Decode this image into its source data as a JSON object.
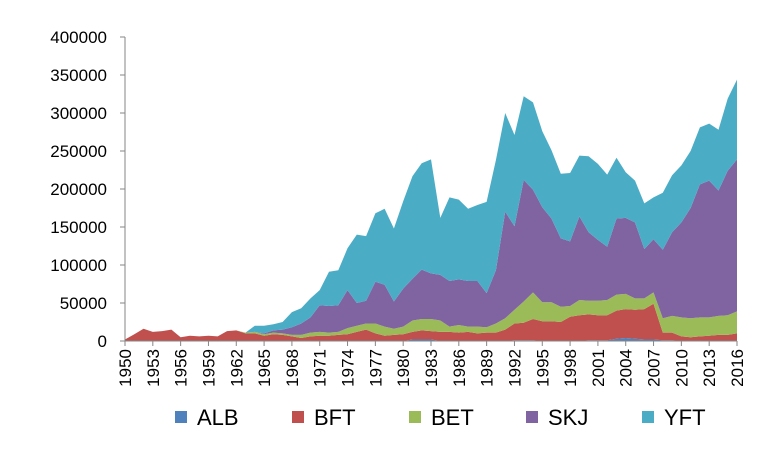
{
  "chart_data": {
    "type": "area",
    "stacked": true,
    "title": "",
    "xlabel": "",
    "ylabel": "",
    "ylim": [
      0,
      400000
    ],
    "yticks": [
      0,
      50000,
      100000,
      150000,
      200000,
      250000,
      300000,
      350000,
      400000
    ],
    "x": [
      1950,
      1951,
      1952,
      1953,
      1954,
      1955,
      1956,
      1957,
      1958,
      1959,
      1960,
      1961,
      1962,
      1963,
      1964,
      1965,
      1966,
      1967,
      1968,
      1969,
      1970,
      1971,
      1972,
      1973,
      1974,
      1975,
      1976,
      1977,
      1978,
      1979,
      1980,
      1981,
      1982,
      1983,
      1984,
      1985,
      1986,
      1987,
      1988,
      1989,
      1990,
      1991,
      1992,
      1993,
      1994,
      1995,
      1996,
      1997,
      1998,
      1999,
      2000,
      2001,
      2002,
      2003,
      2004,
      2005,
      2006,
      2007,
      2008,
      2009,
      2010,
      2011,
      2012,
      2013,
      2014,
      2015,
      2016
    ],
    "xticks": [
      1950,
      1953,
      1956,
      1959,
      1962,
      1965,
      1968,
      1971,
      1974,
      1977,
      1980,
      1983,
      1986,
      1989,
      1992,
      1995,
      1998,
      2001,
      2004,
      2007,
      2010,
      2013,
      2016
    ],
    "grid": false,
    "legend_position": "bottom",
    "colors": {
      "ALB": "#4F81BD",
      "BFT": "#C0504D",
      "BET": "#9BBB59",
      "SKJ": "#8064A2",
      "YFT": "#4BACC6"
    },
    "series": [
      {
        "name": "ALB",
        "values": [
          0,
          0,
          0,
          0,
          0,
          0,
          0,
          0,
          0,
          0,
          0,
          0,
          0,
          0,
          0,
          0,
          0,
          0,
          0,
          0,
          0,
          0,
          0,
          0,
          0,
          0,
          0,
          0,
          0,
          0,
          0,
          2000,
          2000,
          2000,
          0,
          0,
          0,
          0,
          0,
          0,
          0,
          0,
          1000,
          1000,
          1000,
          0,
          0,
          0,
          0,
          0,
          1000,
          1000,
          1000,
          3000,
          4000,
          3000,
          2000,
          2000,
          1000,
          1000,
          0,
          0,
          0,
          0,
          0,
          0,
          0
        ]
      },
      {
        "name": "BFT",
        "values": [
          2000,
          9000,
          16000,
          12000,
          13000,
          15000,
          5000,
          7000,
          6000,
          7000,
          6000,
          13000,
          14000,
          10000,
          10000,
          7000,
          9000,
          8000,
          6000,
          4000,
          6000,
          7000,
          7000,
          8000,
          9000,
          12000,
          15000,
          10000,
          7000,
          8000,
          9000,
          10000,
          12000,
          11000,
          12000,
          12000,
          11000,
          12000,
          10000,
          11000,
          11000,
          15000,
          22000,
          23000,
          28000,
          26000,
          26000,
          25000,
          32000,
          34000,
          34000,
          33000,
          33000,
          37000,
          38000,
          38000,
          40000,
          47000,
          10000,
          10000,
          6000,
          5000,
          6000,
          7000,
          8000,
          8000,
          10000
        ]
      },
      {
        "name": "BET",
        "values": [
          0,
          0,
          0,
          0,
          0,
          0,
          0,
          0,
          0,
          0,
          0,
          0,
          0,
          1000,
          2000,
          2000,
          2000,
          2000,
          2000,
          4000,
          5000,
          5000,
          4000,
          4000,
          8000,
          8000,
          8000,
          13000,
          12000,
          8000,
          10000,
          15000,
          15000,
          16000,
          15000,
          7000,
          10000,
          7000,
          9000,
          7000,
          12000,
          15000,
          18000,
          28000,
          35000,
          25000,
          25000,
          20000,
          14000,
          20000,
          18000,
          19000,
          20000,
          21000,
          20000,
          15000,
          14000,
          15000,
          19000,
          22000,
          25000,
          25000,
          25000,
          24000,
          25000,
          26000,
          29000
        ]
      },
      {
        "name": "SKJ",
        "values": [
          0,
          0,
          0,
          0,
          0,
          0,
          0,
          0,
          0,
          0,
          0,
          0,
          0,
          0,
          0,
          1000,
          3000,
          5000,
          10000,
          15000,
          20000,
          35000,
          35000,
          35000,
          50000,
          30000,
          30000,
          55000,
          55000,
          36000,
          50000,
          55000,
          65000,
          60000,
          60000,
          60000,
          60000,
          60000,
          60000,
          45000,
          70000,
          140000,
          110000,
          160000,
          135000,
          125000,
          110000,
          90000,
          85000,
          110000,
          90000,
          80000,
          70000,
          100000,
          100000,
          100000,
          65000,
          70000,
          90000,
          110000,
          125000,
          145000,
          175000,
          180000,
          165000,
          190000,
          200000
        ]
      },
      {
        "name": "YFT",
        "values": [
          0,
          0,
          0,
          0,
          0,
          0,
          0,
          0,
          0,
          0,
          0,
          0,
          0,
          0,
          8000,
          10000,
          8000,
          10000,
          20000,
          20000,
          25000,
          20000,
          45000,
          46000,
          55000,
          90000,
          85000,
          90000,
          100000,
          96000,
          115000,
          135000,
          140000,
          150000,
          75000,
          110000,
          105000,
          95000,
          100000,
          120000,
          145000,
          130000,
          120000,
          110000,
          115000,
          100000,
          90000,
          85000,
          90000,
          80000,
          100000,
          100000,
          95000,
          80000,
          60000,
          55000,
          60000,
          55000,
          75000,
          75000,
          75000,
          75000,
          75000,
          75000,
          80000,
          95000,
          105000
        ]
      }
    ],
    "legend": [
      "ALB",
      "BFT",
      "BET",
      "SKJ",
      "YFT"
    ]
  }
}
